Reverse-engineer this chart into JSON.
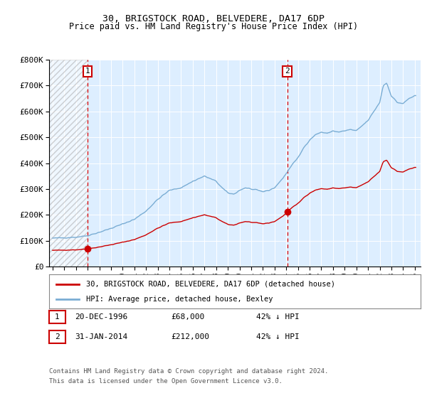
{
  "title": "30, BRIGSTOCK ROAD, BELVEDERE, DA17 6DP",
  "subtitle": "Price paid vs. HM Land Registry's House Price Index (HPI)",
  "ylim": [
    0,
    800000
  ],
  "xlim_start": 1993.7,
  "xlim_end": 2025.5,
  "sale1_date": 1996.97,
  "sale1_price": 68000,
  "sale1_label": "1",
  "sale1_text": "20-DEC-1996",
  "sale1_value_text": "£68,000",
  "sale1_hpi_text": "42% ↓ HPI",
  "sale2_date": 2014.08,
  "sale2_price": 212000,
  "sale2_label": "2",
  "sale2_text": "31-JAN-2014",
  "sale2_value_text": "£212,000",
  "sale2_hpi_text": "42% ↓ HPI",
  "legend_house": "30, BRIGSTOCK ROAD, BELVEDERE, DA17 6DP (detached house)",
  "legend_hpi": "HPI: Average price, detached house, Bexley",
  "footer1": "Contains HM Land Registry data © Crown copyright and database right 2024.",
  "footer2": "This data is licensed under the Open Government Licence v3.0.",
  "house_color": "#cc0000",
  "hpi_color": "#7aadd4",
  "bg_color": "#ddeeff",
  "vline_color": "#dd0000",
  "box_color": "#cc0000",
  "box_label_color": "#cc0000"
}
